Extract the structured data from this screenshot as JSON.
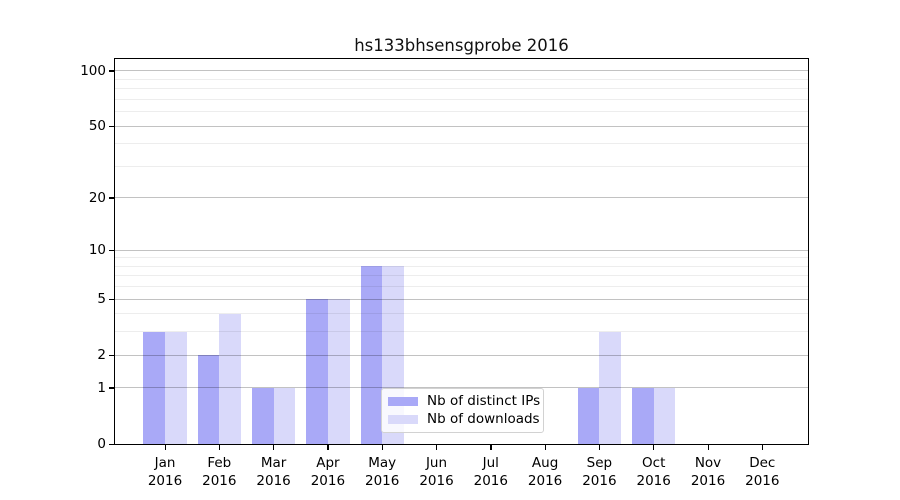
{
  "chart_data": {
    "type": "bar",
    "title": "hs133bhsensgprobe 2016",
    "year_label": "2016",
    "categories": [
      "Jan",
      "Feb",
      "Mar",
      "Apr",
      "May",
      "Jun",
      "Jul",
      "Aug",
      "Sep",
      "Oct",
      "Nov",
      "Dec"
    ],
    "series": [
      {
        "name": "Nb of distinct IPs",
        "color": "#a9a9f7",
        "values": [
          3,
          2,
          1,
          5,
          8,
          0,
          0,
          0,
          1,
          1,
          0,
          0
        ]
      },
      {
        "name": "Nb of downloads",
        "color": "#d9d9fa",
        "values": [
          3,
          4,
          1,
          5,
          8,
          0,
          0,
          0,
          3,
          1,
          0,
          0
        ]
      }
    ],
    "xlabel": "",
    "ylabel": "",
    "y_scale": "log1p",
    "ylim": [
      0,
      116
    ],
    "yticks_major": [
      0,
      1,
      2,
      5,
      10,
      20,
      50,
      100
    ],
    "yticks_minor": [
      3,
      4,
      6,
      7,
      8,
      9,
      30,
      40,
      60,
      70,
      80,
      90
    ],
    "grid": "horizontal-on",
    "legend_position": "lower-center"
  },
  "colors": {
    "background": "#ffffff",
    "spine": "#000000",
    "grid_major": "#bfbfbf",
    "grid_minor": "#ebebeb",
    "legend_border": "#d2d2d2"
  }
}
